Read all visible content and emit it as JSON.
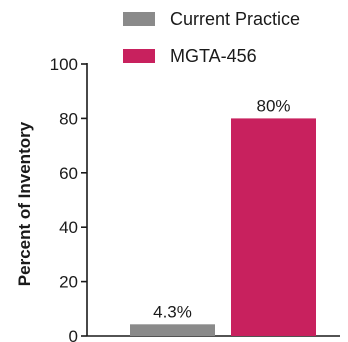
{
  "chart_data": {
    "type": "bar",
    "title": "",
    "xlabel": "",
    "ylabel": "Percent of Inventory",
    "ylim": [
      0,
      100
    ],
    "yticks": [
      0,
      20,
      40,
      60,
      80,
      100
    ],
    "categories": [
      "Current Practice",
      "MGTA-456"
    ],
    "values": [
      4.3,
      80
    ],
    "data_labels": [
      "4.3%",
      "80%"
    ],
    "colors": [
      "#8a8a8a",
      "#c8215e"
    ],
    "legend": {
      "position": "top-right",
      "entries": [
        {
          "label": "Current Practice",
          "color": "#8a8a8a"
        },
        {
          "label": "MGTA-456",
          "color": "#c8215e"
        }
      ]
    },
    "grid": false
  }
}
